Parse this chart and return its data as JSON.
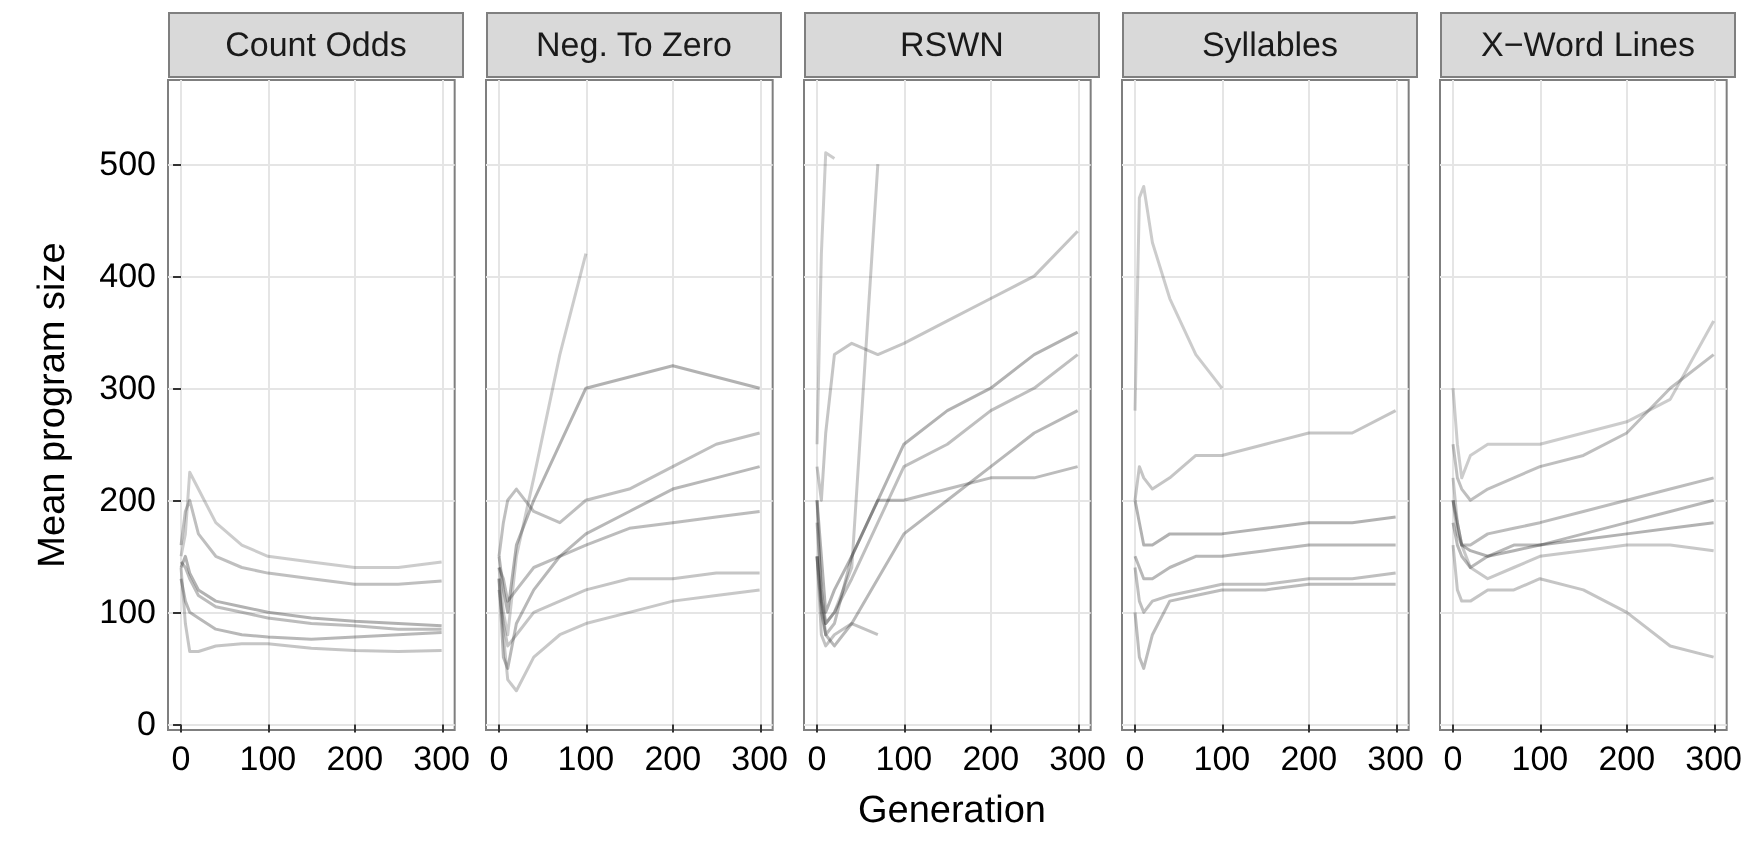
{
  "chart_data": [
    {
      "type": "line",
      "title": "Count Odds",
      "ylabel": "Mean program size",
      "x": [
        0,
        5,
        10,
        20,
        40,
        70,
        100,
        150,
        200,
        250,
        300
      ],
      "xlim": [
        -15,
        315
      ],
      "ylim": [
        -5,
        575
      ],
      "xticks": [
        0,
        100,
        200,
        300
      ],
      "yticks": [
        0,
        100,
        200,
        300,
        400,
        500
      ],
      "grid": true,
      "marker": "none",
      "series": [
        {
          "color": "#000000",
          "values": [
            140,
            150,
            135,
            120,
            110,
            105,
            100,
            95,
            92,
            90,
            88
          ]
        },
        {
          "color": "#2a2a2a",
          "values": [
            160,
            190,
            200,
            170,
            150,
            140,
            135,
            130,
            125,
            125,
            128
          ]
        },
        {
          "color": "#555555",
          "values": [
            150,
            170,
            225,
            210,
            180,
            160,
            150,
            145,
            140,
            140,
            145
          ]
        },
        {
          "color": "#151515",
          "values": [
            130,
            110,
            100,
            95,
            85,
            80,
            78,
            76,
            78,
            80,
            82
          ]
        },
        {
          "color": "#404040",
          "values": [
            140,
            90,
            65,
            65,
            70,
            72,
            72,
            68,
            66,
            65,
            66
          ]
        },
        {
          "color": "#202020",
          "values": [
            145,
            140,
            130,
            115,
            105,
            100,
            95,
            90,
            88,
            85,
            85
          ]
        }
      ]
    },
    {
      "type": "line",
      "title": "Neg. To Zero",
      "x": [
        0,
        5,
        10,
        20,
        40,
        70,
        100,
        150,
        200,
        250,
        300
      ],
      "xlim": [
        -15,
        315
      ],
      "ylim": [
        -5,
        575
      ],
      "xticks": [
        0,
        100,
        200,
        300
      ],
      "yticks": [
        0,
        100,
        200,
        300,
        400,
        500
      ],
      "grid": true,
      "marker": "none",
      "tick_labels": "x",
      "series": [
        {
          "color": "#000000",
          "values": [
            150,
            120,
            100,
            160,
            200,
            250,
            300,
            310,
            320,
            310,
            300
          ]
        },
        {
          "color": "#555555",
          "values": [
            140,
            100,
            80,
            150,
            220,
            330,
            420,
            null,
            null,
            null,
            null
          ]
        },
        {
          "color": "#151515",
          "values": [
            130,
            60,
            50,
            90,
            120,
            150,
            170,
            190,
            210,
            220,
            230
          ]
        },
        {
          "color": "#2a2a2a",
          "values": [
            150,
            180,
            200,
            210,
            190,
            180,
            200,
            210,
            230,
            250,
            260
          ]
        },
        {
          "color": "#404040",
          "values": [
            120,
            90,
            70,
            80,
            100,
            110,
            120,
            130,
            130,
            135,
            135
          ]
        },
        {
          "color": "#202020",
          "values": [
            140,
            130,
            110,
            120,
            140,
            150,
            160,
            175,
            180,
            185,
            190
          ]
        },
        {
          "color": "#4a4a4a",
          "values": [
            130,
            80,
            40,
            30,
            60,
            80,
            90,
            100,
            110,
            115,
            120
          ]
        }
      ]
    },
    {
      "type": "line",
      "title": "RSWN",
      "xlabel": "Generation",
      "x": [
        0,
        5,
        10,
        20,
        40,
        70,
        100,
        150,
        200,
        250,
        300
      ],
      "xlim": [
        -15,
        315
      ],
      "ylim": [
        -5,
        575
      ],
      "xticks": [
        0,
        100,
        200,
        300
      ],
      "yticks": [
        0,
        100,
        200,
        300,
        400,
        500
      ],
      "grid": true,
      "marker": "none",
      "tick_labels": "x",
      "series": [
        {
          "color": "#000000",
          "values": [
            200,
            150,
            100,
            120,
            150,
            200,
            250,
            280,
            300,
            330,
            350
          ]
        },
        {
          "color": "#555555",
          "values": [
            250,
            420,
            510,
            505,
            null,
            null,
            null,
            null,
            null,
            null,
            null
          ]
        },
        {
          "color": "#4a4a4a",
          "values": [
            150,
            110,
            90,
            100,
            140,
            500,
            null,
            null,
            null,
            null,
            null
          ]
        },
        {
          "color": "#151515",
          "values": [
            150,
            100,
            80,
            70,
            90,
            130,
            170,
            200,
            230,
            260,
            280
          ]
        },
        {
          "color": "#2a2a2a",
          "values": [
            180,
            120,
            90,
            100,
            130,
            180,
            230,
            250,
            280,
            300,
            330
          ]
        },
        {
          "color": "#404040",
          "values": [
            230,
            200,
            260,
            330,
            340,
            330,
            340,
            360,
            380,
            400,
            440
          ]
        },
        {
          "color": "#202020",
          "values": [
            200,
            110,
            80,
            90,
            150,
            200,
            200,
            210,
            220,
            220,
            230
          ]
        },
        {
          "color": "#353535",
          "values": [
            150,
            80,
            70,
            80,
            90,
            80,
            null,
            null,
            null,
            null,
            null
          ]
        }
      ]
    },
    {
      "type": "line",
      "title": "Syllables",
      "x": [
        0,
        5,
        10,
        20,
        40,
        70,
        100,
        150,
        200,
        250,
        300
      ],
      "xlim": [
        -15,
        315
      ],
      "ylim": [
        -5,
        575
      ],
      "xticks": [
        0,
        100,
        200,
        300
      ],
      "yticks": [
        0,
        100,
        200,
        300,
        400,
        500
      ],
      "grid": true,
      "marker": "none",
      "tick_labels": "x",
      "series": [
        {
          "color": "#555555",
          "values": [
            280,
            470,
            480,
            430,
            380,
            330,
            300,
            null,
            null,
            null,
            null
          ]
        },
        {
          "color": "#000000",
          "values": [
            200,
            180,
            160,
            160,
            170,
            170,
            170,
            175,
            180,
            180,
            185
          ]
        },
        {
          "color": "#151515",
          "values": [
            150,
            140,
            130,
            130,
            140,
            150,
            150,
            155,
            160,
            160,
            160
          ]
        },
        {
          "color": "#2a2a2a",
          "values": [
            140,
            110,
            100,
            110,
            115,
            120,
            125,
            125,
            130,
            130,
            135
          ]
        },
        {
          "color": "#404040",
          "values": [
            200,
            230,
            220,
            210,
            220,
            240,
            240,
            250,
            260,
            260,
            280
          ]
        },
        {
          "color": "#202020",
          "values": [
            100,
            60,
            50,
            80,
            110,
            115,
            120,
            120,
            125,
            125,
            125
          ]
        }
      ]
    },
    {
      "type": "line",
      "title": "X−Word Lines",
      "x": [
        0,
        5,
        10,
        20,
        40,
        70,
        100,
        150,
        200,
        250,
        300
      ],
      "xlim": [
        -15,
        315
      ],
      "ylim": [
        -5,
        575
      ],
      "xticks": [
        0,
        100,
        200,
        300
      ],
      "yticks": [
        0,
        100,
        200,
        300,
        400,
        500
      ],
      "grid": true,
      "marker": "none",
      "tick_labels": "x",
      "series": [
        {
          "color": "#000000",
          "values": [
            200,
            180,
            160,
            155,
            150,
            155,
            160,
            165,
            170,
            175,
            180
          ]
        },
        {
          "color": "#2a2a2a",
          "values": [
            250,
            220,
            210,
            200,
            210,
            220,
            230,
            240,
            260,
            300,
            330
          ]
        },
        {
          "color": "#151515",
          "values": [
            180,
            160,
            150,
            140,
            150,
            160,
            160,
            170,
            180,
            190,
            200
          ]
        },
        {
          "color": "#555555",
          "values": [
            300,
            250,
            220,
            240,
            250,
            250,
            250,
            260,
            270,
            290,
            360
          ]
        },
        {
          "color": "#404040",
          "values": [
            160,
            120,
            110,
            110,
            120,
            120,
            130,
            120,
            100,
            70,
            60
          ]
        },
        {
          "color": "#202020",
          "values": [
            200,
            170,
            160,
            160,
            170,
            175,
            180,
            190,
            200,
            210,
            220
          ]
        },
        {
          "color": "#4a4a4a",
          "values": [
            220,
            180,
            160,
            140,
            130,
            140,
            150,
            155,
            160,
            160,
            155
          ]
        }
      ]
    }
  ]
}
